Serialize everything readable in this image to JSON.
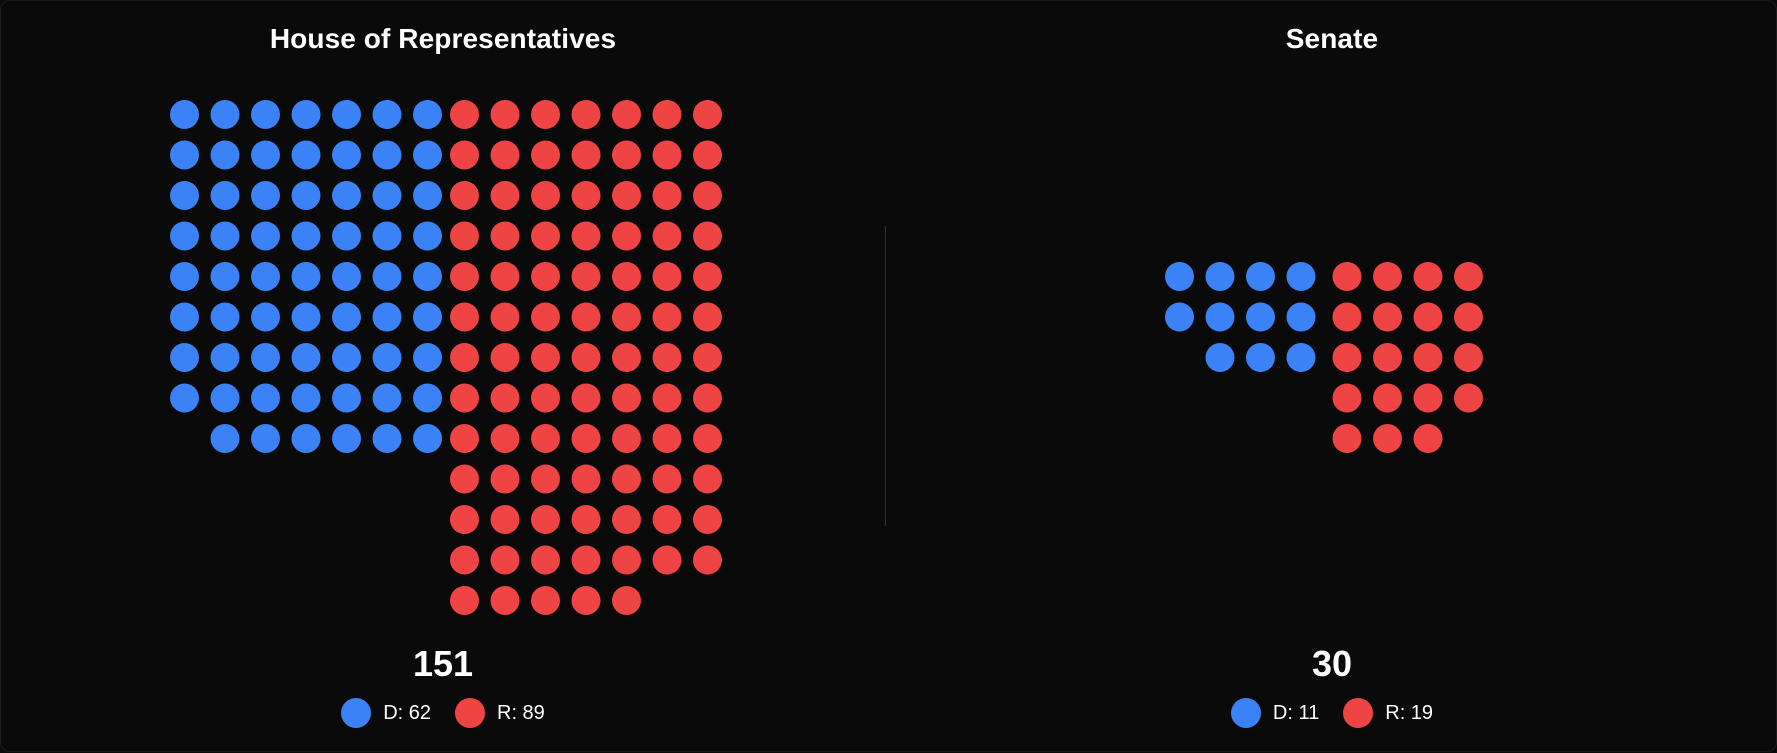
{
  "colors": {
    "democrat": "#3b82f6",
    "republican": "#ef4444",
    "background": "#0a0a0a"
  },
  "chart_data": [
    {
      "type": "seat-grid",
      "title": "House of Representatives",
      "total": "151",
      "columns_per_party": 7,
      "series": [
        {
          "name": "D",
          "party": "democrat",
          "seats": 62,
          "legend": "D: 62"
        },
        {
          "name": "R",
          "party": "republican",
          "seats": 89,
          "legend": "R: 89"
        }
      ]
    },
    {
      "type": "seat-grid",
      "title": "Senate",
      "total": "30",
      "columns_per_party": 4,
      "series": [
        {
          "name": "D",
          "party": "democrat",
          "seats": 11,
          "legend": "D: 11"
        },
        {
          "name": "R",
          "party": "republican",
          "seats": 19,
          "legend": "R: 19"
        }
      ]
    }
  ]
}
